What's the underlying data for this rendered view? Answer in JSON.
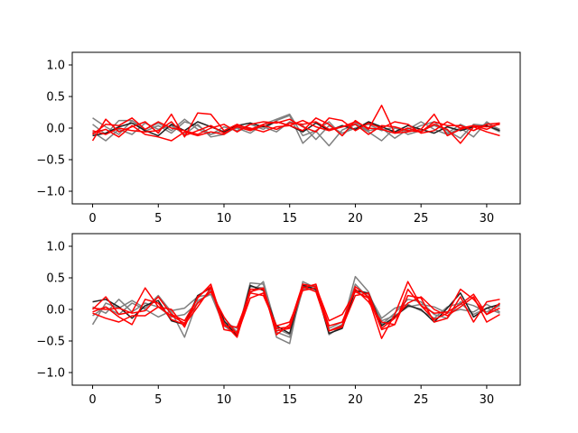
{
  "chart_data": [
    {
      "type": "line",
      "title": "",
      "xlabel": "",
      "ylabel": "",
      "xlim": [
        -1.55,
        32.55
      ],
      "ylim": [
        -1.2,
        1.2
      ],
      "xticks": [
        0,
        5,
        10,
        15,
        20,
        25,
        30
      ],
      "yticks": [
        -1.0,
        -0.5,
        0.0,
        0.5,
        1.0
      ],
      "xtick_labels": [
        "0",
        "5",
        "10",
        "15",
        "20",
        "25",
        "30"
      ],
      "ytick_labels": [
        "−1.0",
        "−0.5",
        "0.0",
        "0.5",
        "1.0"
      ],
      "grid": false,
      "x": [
        0,
        1,
        2,
        3,
        4,
        5,
        6,
        7,
        8,
        9,
        10,
        11,
        12,
        13,
        14,
        15,
        16,
        17,
        18,
        19,
        20,
        21,
        22,
        23,
        24,
        25,
        26,
        27,
        28,
        29,
        30,
        31
      ],
      "series": [
        {
          "color": "#808080",
          "values": [
            0.16,
            0.02,
            -0.1,
            0.12,
            -0.05,
            0.04,
            -0.08,
            0.1,
            0.04,
            -0.1,
            0.02,
            -0.04,
            0.06,
            -0.02,
            0.12,
            0.2,
            -0.24,
            -0.05,
            -0.28,
            -0.03,
            0.06,
            -0.06,
            -0.2,
            0.0,
            -0.05,
            0.04,
            0.1,
            -0.08,
            0.06,
            -0.04,
            0.08,
            -0.02
          ]
        },
        {
          "color": "#808080",
          "values": [
            0.06,
            -0.1,
            0.12,
            0.12,
            -0.02,
            0.08,
            -0.04,
            0.14,
            -0.02,
            -0.1,
            -0.04,
            0.0,
            -0.08,
            0.06,
            0.14,
            0.22,
            -0.12,
            -0.04,
            0.1,
            -0.12,
            0.08,
            -0.04,
            0.0,
            -0.16,
            -0.02,
            0.1,
            -0.02,
            -0.1,
            0.0,
            -0.14,
            0.1,
            -0.04
          ]
        },
        {
          "color": "#808080",
          "values": [
            -0.06,
            -0.2,
            -0.02,
            -0.1,
            0.08,
            -0.02,
            0.04,
            -0.1,
            0.06,
            -0.14,
            -0.1,
            0.02,
            -0.02,
            0.02,
            -0.06,
            0.1,
            0.04,
            -0.18,
            0.04,
            -0.08,
            0.0,
            0.06,
            -0.04,
            0.02,
            -0.1,
            -0.04,
            0.04,
            -0.04,
            -0.16,
            0.06,
            0.04,
            -0.06
          ]
        },
        {
          "color": "#202020",
          "values": [
            -0.12,
            -0.08,
            0.02,
            0.08,
            -0.04,
            -0.12,
            0.06,
            -0.04,
            0.1,
            0.02,
            -0.06,
            0.04,
            0.08,
            0.02,
            0.1,
            0.04,
            -0.06,
            0.08,
            -0.04,
            0.04,
            -0.02,
            0.1,
            0.02,
            -0.06,
            0.04,
            -0.02,
            -0.08,
            0.02,
            -0.04,
            0.02,
            0.04,
            -0.04
          ]
        },
        {
          "color": "#ff0000",
          "values": [
            -0.2,
            0.14,
            -0.06,
            0.02,
            0.1,
            -0.08,
            0.22,
            -0.14,
            0.24,
            0.22,
            -0.04,
            0.06,
            -0.02,
            0.06,
            0.1,
            0.04,
            -0.04,
            0.16,
            0.06,
            -0.12,
            0.12,
            -0.02,
            0.36,
            -0.08,
            -0.06,
            -0.02,
            0.22,
            -0.12,
            -0.02,
            0.04,
            -0.02,
            0.08
          ]
        },
        {
          "color": "#ff0000",
          "values": [
            -0.1,
            0.06,
            0.04,
            0.16,
            -0.02,
            0.1,
            0.0,
            -0.04,
            -0.1,
            0.0,
            0.06,
            -0.06,
            0.06,
            0.1,
            0.08,
            0.14,
            0.02,
            -0.06,
            0.16,
            0.12,
            -0.04,
            0.08,
            0.0,
            0.1,
            0.06,
            -0.08,
            -0.04,
            0.1,
            0.0,
            0.04,
            0.02,
            0.06
          ]
        },
        {
          "color": "#ff0000",
          "values": [
            -0.04,
            -0.1,
            0.0,
            -0.04,
            -0.06,
            -0.04,
            0.1,
            -0.12,
            -0.04,
            0.04,
            -0.08,
            0.02,
            -0.04,
            0.04,
            -0.02,
            0.08,
            0.06,
            0.1,
            -0.02,
            0.02,
            0.06,
            -0.1,
            0.04,
            0.02,
            -0.04,
            -0.06,
            0.06,
            -0.02,
            -0.24,
            0.02,
            -0.06,
            -0.12
          ]
        },
        {
          "color": "#ff0000",
          "values": [
            -0.08,
            -0.02,
            -0.14,
            0.04,
            -0.1,
            -0.14,
            -0.2,
            -0.06,
            -0.12,
            -0.06,
            -0.1,
            0.04,
            0.0,
            -0.06,
            0.02,
            0.04,
            0.12,
            0.02,
            -0.04,
            0.02,
            0.1,
            0.0,
            -0.02,
            -0.08,
            0.0,
            -0.06,
            0.1,
            0.04,
            0.04,
            -0.04,
            0.06,
            0.08
          ]
        }
      ]
    },
    {
      "type": "line",
      "title": "",
      "xlabel": "",
      "ylabel": "",
      "xlim": [
        -1.55,
        32.55
      ],
      "ylim": [
        -1.2,
        1.2
      ],
      "xticks": [
        0,
        5,
        10,
        15,
        20,
        25,
        30
      ],
      "yticks": [
        -1.0,
        -0.5,
        0.0,
        0.5,
        1.0
      ],
      "xtick_labels": [
        "0",
        "5",
        "10",
        "15",
        "20",
        "25",
        "30"
      ],
      "ytick_labels": [
        "−1.0",
        "−0.5",
        "0.0",
        "0.5",
        "1.0"
      ],
      "grid": false,
      "x": [
        0,
        1,
        2,
        3,
        4,
        5,
        6,
        7,
        8,
        9,
        10,
        11,
        12,
        13,
        14,
        15,
        16,
        17,
        18,
        19,
        20,
        21,
        22,
        23,
        24,
        25,
        26,
        27,
        28,
        29,
        30,
        31
      ],
      "series": [
        {
          "color": "#808080",
          "values": [
            -0.24,
            0.1,
            0.02,
            0.14,
            0.02,
            0.22,
            -0.04,
            -0.44,
            0.14,
            0.24,
            -0.26,
            -0.4,
            0.42,
            0.4,
            -0.44,
            -0.54,
            0.44,
            0.34,
            -0.4,
            -0.26,
            0.52,
            0.28,
            -0.24,
            -0.06,
            0.16,
            0.12,
            -0.08,
            -0.14,
            0.12,
            0.06,
            -0.04,
            0.06
          ]
        },
        {
          "color": "#808080",
          "values": [
            -0.1,
            0.04,
            -0.08,
            0.1,
            0.0,
            -0.12,
            -0.02,
            0.02,
            0.2,
            0.24,
            -0.14,
            -0.36,
            0.36,
            0.34,
            -0.36,
            -0.44,
            0.32,
            0.38,
            -0.3,
            -0.2,
            0.3,
            0.24,
            -0.14,
            0.02,
            0.08,
            -0.02,
            -0.14,
            0.04,
            0.1,
            -0.08,
            0.02,
            -0.06
          ]
        },
        {
          "color": "#808080",
          "values": [
            0.04,
            -0.06,
            0.16,
            -0.04,
            0.1,
            0.04,
            -0.12,
            -0.08,
            0.1,
            0.3,
            -0.2,
            -0.3,
            0.26,
            0.44,
            -0.3,
            -0.4,
            0.4,
            0.3,
            -0.34,
            -0.24,
            0.4,
            0.18,
            -0.18,
            -0.1,
            0.04,
            0.08,
            0.04,
            -0.06,
            0.0,
            -0.04,
            0.08,
            -0.04
          ]
        },
        {
          "color": "#202020",
          "values": [
            0.12,
            0.16,
            0.04,
            -0.14,
            0.06,
            0.14,
            -0.18,
            -0.24,
            0.22,
            0.34,
            -0.18,
            -0.42,
            0.38,
            0.3,
            -0.26,
            -0.38,
            0.38,
            0.32,
            -0.38,
            -0.3,
            0.3,
            0.26,
            -0.26,
            -0.12,
            0.06,
            0.0,
            -0.2,
            0.02,
            0.26,
            -0.12,
            0.02,
            0.08
          ]
        },
        {
          "color": "#ff0000",
          "values": [
            0.0,
            0.2,
            -0.08,
            -0.04,
            0.34,
            0.04,
            0.0,
            -0.28,
            0.2,
            0.36,
            -0.32,
            -0.36,
            0.32,
            0.32,
            -0.4,
            -0.24,
            0.4,
            0.36,
            -0.18,
            -0.08,
            0.28,
            0.18,
            -0.46,
            -0.08,
            0.44,
            0.06,
            -0.16,
            -0.06,
            0.32,
            0.16,
            -0.08,
            0.1
          ]
        },
        {
          "color": "#ff0000",
          "values": [
            -0.04,
            0.04,
            -0.12,
            -0.24,
            0.16,
            0.1,
            -0.16,
            -0.24,
            0.04,
            0.34,
            -0.22,
            -0.44,
            0.28,
            0.34,
            -0.34,
            -0.3,
            0.34,
            0.4,
            -0.34,
            -0.26,
            0.36,
            0.2,
            -0.32,
            -0.24,
            0.22,
            0.18,
            -0.2,
            -0.14,
            0.2,
            -0.2,
            0.12,
            0.16
          ]
        },
        {
          "color": "#ff0000",
          "values": [
            0.02,
            0.0,
            0.02,
            -0.06,
            -0.02,
            0.2,
            -0.08,
            -0.18,
            0.18,
            0.4,
            -0.26,
            -0.28,
            0.26,
            0.22,
            -0.26,
            -0.2,
            0.3,
            0.34,
            -0.26,
            -0.2,
            0.32,
            0.12,
            -0.2,
            -0.24,
            0.32,
            0.06,
            -0.06,
            -0.04,
            0.08,
            0.24,
            -0.08,
            0.02
          ]
        },
        {
          "color": "#ff0000",
          "values": [
            -0.06,
            -0.14,
            -0.2,
            -0.1,
            -0.1,
            0.04,
            -0.1,
            -0.22,
            0.1,
            0.28,
            -0.12,
            -0.4,
            0.18,
            0.26,
            -0.3,
            -0.28,
            0.36,
            0.28,
            -0.34,
            -0.28,
            0.22,
            0.26,
            -0.3,
            -0.14,
            0.1,
            0.2,
            0.0,
            -0.1,
            0.04,
            0.2,
            -0.2,
            -0.08
          ]
        }
      ]
    }
  ]
}
